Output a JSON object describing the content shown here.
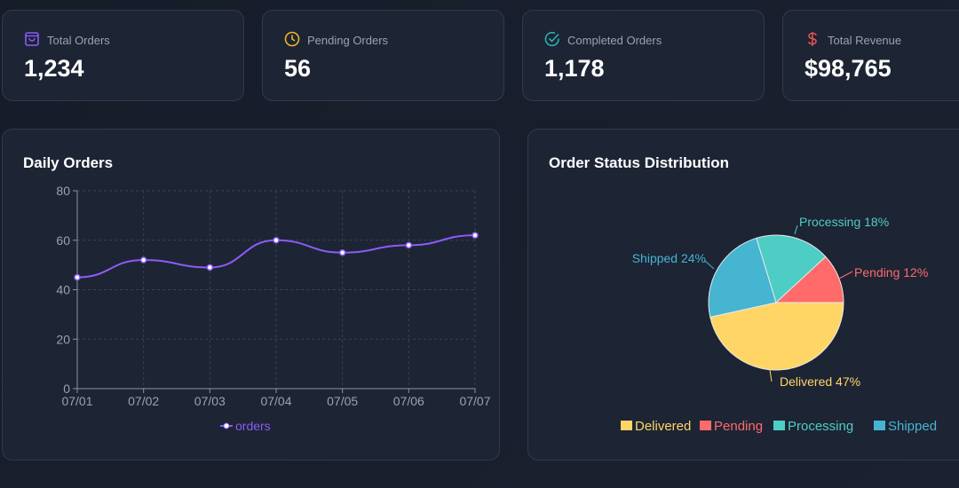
{
  "stats": [
    {
      "label": "Total Orders",
      "value": "1,234",
      "icon": "shopping-bag-icon",
      "color": "#8b5cf6"
    },
    {
      "label": "Pending Orders",
      "value": "56",
      "icon": "clock-icon",
      "color": "#f0b429"
    },
    {
      "label": "Completed Orders",
      "value": "1,178",
      "icon": "check-circle-icon",
      "color": "#2bb3ae"
    },
    {
      "label": "Total Revenue",
      "value": "$98,765",
      "icon": "dollar-icon",
      "color": "#e05252"
    }
  ],
  "chart_data": [
    {
      "type": "line",
      "title": "Daily Orders",
      "categories": [
        "07/01",
        "07/02",
        "07/03",
        "07/04",
        "07/05",
        "07/06",
        "07/07"
      ],
      "series": [
        {
          "name": "orders",
          "values": [
            45,
            52,
            49,
            60,
            55,
            58,
            62
          ]
        }
      ],
      "ylim": [
        0,
        80
      ],
      "yticks": [
        "0",
        "20",
        "40",
        "60",
        "80"
      ],
      "grid": true,
      "legend": "bottom",
      "color": "#8b5cf6",
      "smooth": true
    },
    {
      "type": "pie",
      "title": "Order Status Distribution",
      "slices": [
        {
          "name": "Delivered",
          "value": 47,
          "label": "Delivered 47%",
          "color": "#ffd666"
        },
        {
          "name": "Shipped",
          "value": 24,
          "label": "Shipped 24%",
          "color": "#45b5d1"
        },
        {
          "name": "Processing",
          "value": 18,
          "label": "Processing 18%",
          "color": "#4ecdc4"
        },
        {
          "name": "Pending",
          "value": 12,
          "label": "Pending 12%",
          "color": "#ff6b6b"
        }
      ],
      "legend_order": [
        "Delivered",
        "Pending",
        "Processing",
        "Shipped"
      ],
      "legend": "bottom"
    }
  ]
}
